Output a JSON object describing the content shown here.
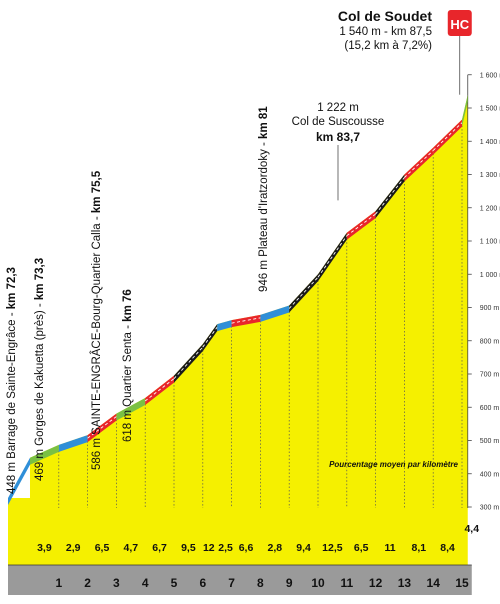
{
  "chart_data": {
    "type": "area",
    "title": "Col de Soudet",
    "subtitle_line1": "1 540 m - km 87,5",
    "subtitle_line2": "(15,2 km à 7,2%)",
    "category_badge": "HC",
    "y_unit_ticks": [
      "300 m",
      "400 m",
      "500 m",
      "600 m",
      "700 m",
      "800 m",
      "900 m",
      "1 000 m",
      "1 100 m",
      "1 200 m",
      "1 300 m",
      "1 400 m",
      "1 500 m",
      "1 600 m"
    ],
    "ylim": [
      300,
      1600
    ],
    "x_ticks": [
      "1",
      "2",
      "3",
      "4",
      "5",
      "6",
      "7",
      "8",
      "9",
      "10",
      "11",
      "12",
      "13",
      "14",
      "15"
    ],
    "gradients_label": "Pourcentage moyen par kilomètre",
    "km_segments": [
      {
        "km": 1,
        "gradient": "3,9",
        "slope": 3.9
      },
      {
        "km": 2,
        "gradient": "2,9",
        "slope": 2.9
      },
      {
        "km": 3,
        "gradient": "6,5",
        "slope": 6.5
      },
      {
        "km": 4,
        "gradient": "4,7",
        "slope": 4.7
      },
      {
        "km": 5,
        "gradient": "6,7",
        "slope": 6.7
      },
      {
        "km": 6,
        "gradient": "9,5",
        "slope": 9.5
      },
      {
        "km": 6.5,
        "gradient": "12",
        "slope": 12
      },
      {
        "km": 7,
        "gradient": "2,5",
        "slope": 2.5
      },
      {
        "km": 8,
        "gradient": "6,6",
        "slope": 6.6
      },
      {
        "km": 9,
        "gradient": "2,8",
        "slope": 2.8
      },
      {
        "km": 10,
        "gradient": "9,4",
        "slope": 9.4
      },
      {
        "km": 11,
        "gradient": "12,5",
        "slope": 12.5
      },
      {
        "km": 12,
        "gradient": "6,5",
        "slope": 6.5
      },
      {
        "km": 13,
        "gradient": "11",
        "slope": 11
      },
      {
        "km": 14,
        "gradient": "8,1",
        "slope": 8.1
      },
      {
        "km": 15,
        "gradient": "8,4",
        "slope": 8.4
      },
      {
        "km": 15.2,
        "gradient": "4,4",
        "slope": 4.4
      }
    ],
    "profile": [
      {
        "x": 0,
        "y": 448
      },
      {
        "x": 1,
        "y": 487
      },
      {
        "x": 2,
        "y": 516
      },
      {
        "x": 3,
        "y": 581
      },
      {
        "x": 4,
        "y": 628
      },
      {
        "x": 5,
        "y": 695
      },
      {
        "x": 6,
        "y": 790
      },
      {
        "x": 6.5,
        "y": 850
      },
      {
        "x": 7,
        "y": 862
      },
      {
        "x": 8,
        "y": 878
      },
      {
        "x": 9,
        "y": 906
      },
      {
        "x": 10,
        "y": 1000
      },
      {
        "x": 11,
        "y": 1125
      },
      {
        "x": 12,
        "y": 1190
      },
      {
        "x": 13,
        "y": 1300
      },
      {
        "x": 14,
        "y": 1381
      },
      {
        "x": 15,
        "y": 1465
      },
      {
        "x": 15.2,
        "y": 1540
      }
    ],
    "waypoints": [
      {
        "text": "448 m Barrage de Sainte-Engrâce - ",
        "km": "km 72,3",
        "x": 0
      },
      {
        "text": "469 m Gorges de Kakuetta (près) - ",
        "km": "km 73,3",
        "x": 1
      },
      {
        "text": "586 m SAINTE-ENGRÂCE-Bourg-Quartier Calla - ",
        "km": "km 75,5",
        "x": 3
      },
      {
        "text": "618 m Quartier Senta - ",
        "km": "km 76",
        "x": 4
      },
      {
        "text": "946 m Plateau d'Iratzordoky - ",
        "km": "km 81",
        "x": 9
      }
    ],
    "intermediate_pass": {
      "line1": "1 222 m",
      "line2": "Col de Suscousse",
      "line3": "km 83,7"
    }
  }
}
